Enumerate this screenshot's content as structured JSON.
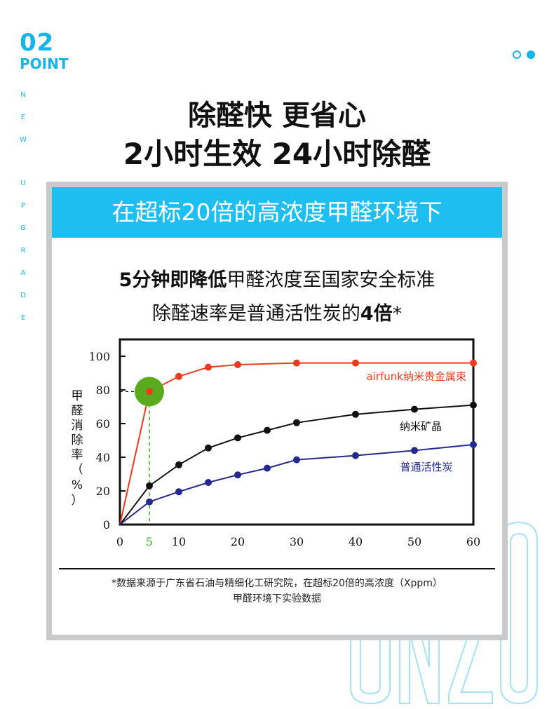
{
  "header": {
    "point_number": "02",
    "point_word": "POINT",
    "vertical_word_1": "NEW",
    "vertical_word_2": "UPGRADE",
    "accent_color": "#18b4e6"
  },
  "headline": {
    "line1": "除醛快 更省心",
    "line2": "2小时生效 24小时除醛"
  },
  "card": {
    "banner": "在超标20倍的高浓度甲醛环境下",
    "sub1_bold": "5分钟即降低",
    "sub1_rest": "甲醛浓度至国家安全标准",
    "sub2_pre": "除醛速率是普通活性炭的",
    "sub2_bold": "4倍",
    "sub2_post": "*",
    "banner_color": "#1fbef0"
  },
  "footnote": {
    "line1": "*数据来源于广东省石油与精细化工研究院，在超标20倍的高浓度（Xppm）",
    "line2": "甲醛环境下实验数据"
  },
  "watermark": "UNZO",
  "chart_data": {
    "type": "line",
    "ylabel": "甲醛消除率（%）",
    "xlabel": "",
    "xlim": [
      0,
      60
    ],
    "ylim": [
      0,
      110
    ],
    "x_ticks": [
      0,
      5,
      10,
      20,
      30,
      40,
      50,
      60
    ],
    "x_tick_labels": [
      "0",
      "5",
      "10",
      "20",
      "30",
      "40",
      "50",
      "60"
    ],
    "highlight_tick": 5,
    "y_ticks": [
      0,
      20,
      40,
      60,
      80,
      100
    ],
    "y_tick_labels": [
      "0",
      "20",
      "40",
      "60",
      "80",
      "100"
    ],
    "grid": false,
    "series": [
      {
        "name": "airfunk纳米贵金属束",
        "color": "#ee3a1c",
        "points": [
          [
            0,
            0
          ],
          [
            5,
            79
          ],
          [
            10,
            88
          ],
          [
            15,
            93.5
          ],
          [
            20,
            95
          ],
          [
            30,
            96
          ],
          [
            40,
            96
          ],
          [
            60,
            96
          ]
        ]
      },
      {
        "name": "纳米矿晶",
        "color": "#111111",
        "points": [
          [
            0,
            0
          ],
          [
            5,
            23
          ],
          [
            10,
            35.5
          ],
          [
            15,
            45.5
          ],
          [
            20,
            51.5
          ],
          [
            25,
            56
          ],
          [
            30,
            60.5
          ],
          [
            40,
            65.5
          ],
          [
            50,
            68.5
          ],
          [
            60,
            71
          ]
        ]
      },
      {
        "name": "普通活性炭",
        "color": "#24298f",
        "points": [
          [
            0,
            0
          ],
          [
            5,
            13.5
          ],
          [
            10,
            19.5
          ],
          [
            15,
            25
          ],
          [
            20,
            29.5
          ],
          [
            25,
            33.5
          ],
          [
            30,
            38.5
          ],
          [
            40,
            41
          ],
          [
            50,
            44
          ],
          [
            60,
            47.5
          ]
        ]
      }
    ],
    "highlight": {
      "x": 5,
      "y": 79,
      "color": "#5aaa1e",
      "guide_color": "#3fae2a"
    }
  }
}
